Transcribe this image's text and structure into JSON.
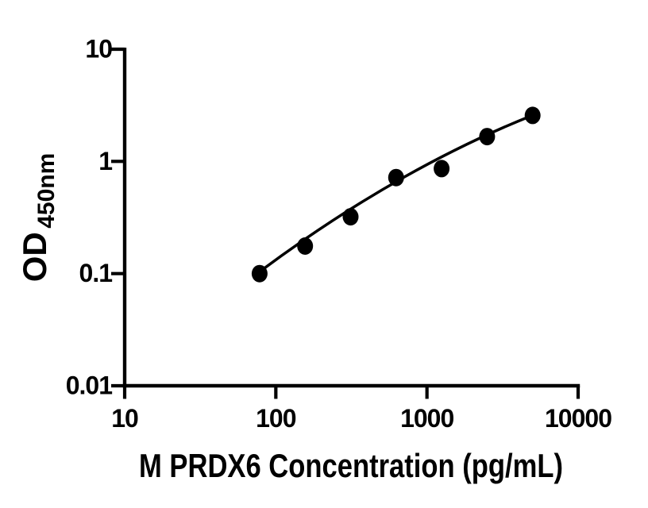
{
  "figure": {
    "background_color": "#ffffff",
    "ink_color": "#000000"
  },
  "chart_data": {
    "type": "scatter",
    "title": "",
    "xlabel": "M PRDX6 Concentration (pg/mL)",
    "ylabel_main": "OD",
    "ylabel_subscript": "450nm",
    "x_scale": "log10",
    "y_scale": "log10",
    "xlim": [
      10,
      10000
    ],
    "ylim": [
      0.01,
      10
    ],
    "x_ticks": [
      10,
      100,
      1000,
      10000
    ],
    "x_tick_labels": [
      "10",
      "100",
      "1000",
      "10000"
    ],
    "y_ticks": [
      0.01,
      0.1,
      1,
      10
    ],
    "y_tick_labels": [
      "0.01",
      "0.1",
      "1",
      "10"
    ],
    "grid": false,
    "legend": "none",
    "series": [
      {
        "name": "standard-curve-points",
        "marker": "filled-circle",
        "color": "#000000",
        "points": [
          {
            "x": 78.125,
            "y": 0.1
          },
          {
            "x": 156.25,
            "y": 0.176
          },
          {
            "x": 312.5,
            "y": 0.321
          },
          {
            "x": 625,
            "y": 0.718
          },
          {
            "x": 1250,
            "y": 0.863
          },
          {
            "x": 2500,
            "y": 1.663
          },
          {
            "x": 5000,
            "y": 2.57
          }
        ]
      }
    ],
    "fit_line": {
      "name": "standard-curve-fit",
      "color": "#000000",
      "anchors": [
        [
          78.125,
          0.104
        ],
        [
          625,
          0.66
        ],
        [
          5000,
          2.58
        ]
      ]
    }
  }
}
